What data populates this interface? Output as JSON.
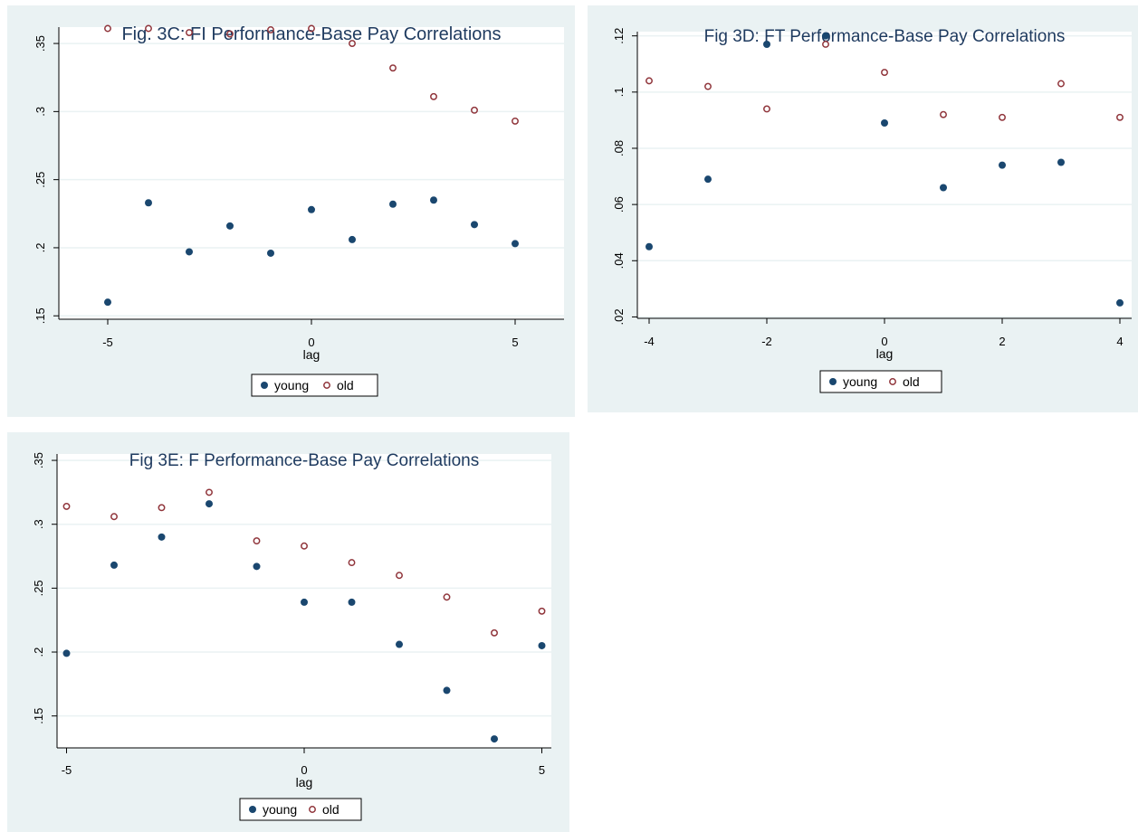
{
  "colors": {
    "young": "#1a476f",
    "old": "#90353b",
    "panel_bg": "#eaf2f3",
    "grid": "#eaf2f3",
    "title": "#1e3a5f"
  },
  "chart_data": [
    {
      "id": "3C",
      "type": "scatter",
      "title": "Fig. 3C: FI Performance-Base Pay Correlations",
      "xlabel": "lag",
      "ylabel": "",
      "xlim": [
        -6.2,
        6.2
      ],
      "ylim": [
        0.1475,
        0.362
      ],
      "xticks": [
        -5,
        0,
        5
      ],
      "xtick_labels": [
        "-5",
        "0",
        "5"
      ],
      "yticks": [
        0.15,
        0.2,
        0.25,
        0.3,
        0.35
      ],
      "ytick_labels": [
        ".15",
        ".2",
        ".25",
        ".3",
        ".35"
      ],
      "grid": true,
      "legend": {
        "position": "bottom-center",
        "entries": [
          "young",
          "old"
        ]
      },
      "series": [
        {
          "name": "young",
          "marker": "filled-circle",
          "x": [
            -5,
            -4,
            -3,
            -2,
            -1,
            0,
            1,
            2,
            3,
            4,
            5
          ],
          "y": [
            0.16,
            0.233,
            0.197,
            0.216,
            0.196,
            0.228,
            0.206,
            0.232,
            0.235,
            0.217,
            0.203
          ]
        },
        {
          "name": "old",
          "marker": "hollow-circle",
          "x": [
            -5,
            -4,
            -3,
            -2,
            -1,
            0,
            1,
            2,
            3,
            4,
            5
          ],
          "y": [
            0.361,
            0.361,
            0.358,
            0.357,
            0.36,
            0.361,
            0.35,
            0.332,
            0.311,
            0.301,
            0.293
          ]
        }
      ]
    },
    {
      "id": "3D",
      "type": "scatter",
      "title": "Fig 3D: FT Performance-Base Pay Correlations",
      "xlabel": "lag",
      "ylabel": "",
      "xlim": [
        -4.2,
        4.2
      ],
      "ylim": [
        0.0195,
        0.1215
      ],
      "xticks": [
        -4,
        -2,
        0,
        2,
        4
      ],
      "xtick_labels": [
        "-4",
        "-2",
        "0",
        "2",
        "4"
      ],
      "yticks": [
        0.02,
        0.04,
        0.06,
        0.08,
        0.1,
        0.12
      ],
      "ytick_labels": [
        ".02",
        ".04",
        ".06",
        ".08",
        ".1",
        ".12"
      ],
      "grid": true,
      "legend": {
        "position": "bottom-center",
        "entries": [
          "young",
          "old"
        ]
      },
      "series": [
        {
          "name": "young",
          "marker": "filled-circle",
          "x": [
            -4,
            -3,
            -2,
            -1,
            0,
            1,
            2,
            3,
            4
          ],
          "y": [
            0.045,
            0.069,
            0.117,
            0.12,
            0.089,
            0.066,
            0.074,
            0.075,
            0.025
          ]
        },
        {
          "name": "old",
          "marker": "hollow-circle",
          "x": [
            -4,
            -3,
            -2,
            -1,
            0,
            1,
            2,
            3,
            4
          ],
          "y": [
            0.104,
            0.102,
            0.094,
            0.117,
            0.107,
            0.092,
            0.091,
            0.103,
            0.091
          ]
        }
      ]
    },
    {
      "id": "3E",
      "type": "scatter",
      "title": "Fig 3E: F Performance-Base Pay Correlations",
      "xlabel": "lag",
      "ylabel": "",
      "xlim": [
        -5.2,
        5.2
      ],
      "ylim": [
        0.125,
        0.355
      ],
      "xticks": [
        -5,
        0,
        5
      ],
      "xtick_labels": [
        "-5",
        "0",
        "5"
      ],
      "yticks": [
        0.15,
        0.2,
        0.25,
        0.3,
        0.35
      ],
      "ytick_labels": [
        ".15",
        ".2",
        ".25",
        ".3",
        ".35"
      ],
      "grid": true,
      "legend": {
        "position": "bottom-center",
        "entries": [
          "young",
          "old"
        ]
      },
      "series": [
        {
          "name": "young",
          "marker": "filled-circle",
          "x": [
            -5,
            -4,
            -3,
            -2,
            -1,
            0,
            1,
            2,
            3,
            4,
            5
          ],
          "y": [
            0.199,
            0.268,
            0.29,
            0.316,
            0.267,
            0.239,
            0.239,
            0.206,
            0.17,
            0.132,
            0.205
          ]
        },
        {
          "name": "old",
          "marker": "hollow-circle",
          "x": [
            -5,
            -4,
            -3,
            -2,
            -1,
            0,
            1,
            2,
            3,
            4,
            5
          ],
          "y": [
            0.314,
            0.306,
            0.313,
            0.325,
            0.287,
            0.283,
            0.27,
            0.26,
            0.243,
            0.215,
            0.232
          ]
        }
      ]
    }
  ]
}
